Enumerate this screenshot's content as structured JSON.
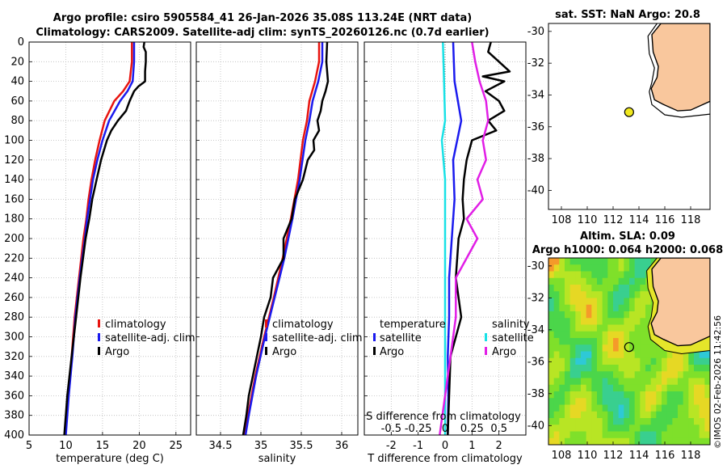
{
  "title": {
    "line1": "Argo profile: csiro 5905584_41 26-Jan-2026 35.08S 113.24E (NRT data)",
    "line2": "Climatology: CARS2009. Satellite-adj clim: synTS_20260126.nc (0.7d earlier)"
  },
  "colors": {
    "climatology": "#e8140f",
    "satellite": "#1a1aee",
    "argo": "#000000",
    "sal_sat": "#19e1e6",
    "sal_argo": "#e11ee6",
    "land": "#f9c79d",
    "argo_dot": "#f0e81e"
  },
  "chart_data": [
    {
      "type": "line",
      "id": "temperature",
      "xlabel": "temperature (deg C)",
      "xlim": [
        5,
        27
      ],
      "xticks": [
        "5",
        "10",
        "15",
        "20",
        "25"
      ],
      "ylim": [
        0,
        400
      ],
      "yticks": [
        "0",
        "20",
        "40",
        "60",
        "80",
        "100",
        "120",
        "140",
        "160",
        "180",
        "200",
        "220",
        "240",
        "260",
        "280",
        "300",
        "320",
        "340",
        "360",
        "380",
        "400"
      ],
      "legend": [
        "climatology",
        "satellite-adj. clim",
        "Argo"
      ],
      "series": [
        {
          "name": "climatology",
          "depth": [
            0,
            20,
            40,
            50,
            60,
            80,
            100,
            120,
            140,
            160,
            180,
            200,
            240,
            280,
            320,
            360,
            400
          ],
          "values": [
            19.0,
            19.0,
            18.7,
            17.8,
            16.6,
            15.3,
            14.6,
            14.0,
            13.5,
            13.1,
            12.8,
            12.4,
            11.8,
            11.2,
            10.8,
            10.3,
            9.9
          ]
        },
        {
          "name": "satellite-adj. clim",
          "depth": [
            0,
            20,
            40,
            50,
            60,
            80,
            100,
            120,
            140,
            160,
            180,
            200,
            240,
            280,
            320,
            360,
            400
          ],
          "values": [
            19.3,
            19.3,
            19.1,
            18.4,
            17.4,
            15.9,
            15.0,
            14.3,
            13.7,
            13.3,
            12.9,
            12.6,
            11.9,
            11.3,
            10.9,
            10.4,
            10.0
          ]
        },
        {
          "name": "Argo",
          "depth": [
            0,
            5,
            10,
            20,
            30,
            40,
            45,
            50,
            60,
            70,
            80,
            90,
            100,
            120,
            140,
            160,
            180,
            200,
            240,
            280,
            320,
            360,
            400
          ],
          "values": [
            20.7,
            20.6,
            20.9,
            20.9,
            20.8,
            20.8,
            19.9,
            19.3,
            18.7,
            18.2,
            17.1,
            16.2,
            15.6,
            14.8,
            14.2,
            13.6,
            13.2,
            12.7,
            12.0,
            11.4,
            10.8,
            10.2,
            9.8
          ]
        }
      ]
    },
    {
      "type": "line",
      "id": "salinity",
      "xlabel": "salinity",
      "xlim": [
        34.2,
        36.2
      ],
      "xticks": [
        "34.5",
        "35",
        "35.5",
        "36"
      ],
      "ylim": [
        0,
        400
      ],
      "legend": [
        "climatology",
        "satellite-adj. clim",
        "Argo"
      ],
      "series": [
        {
          "name": "climatology",
          "depth": [
            0,
            20,
            40,
            60,
            80,
            100,
            140,
            180,
            220,
            260,
            300,
            340,
            380,
            400
          ],
          "values": [
            35.72,
            35.72,
            35.67,
            35.6,
            35.57,
            35.52,
            35.46,
            35.37,
            35.27,
            35.16,
            35.04,
            34.93,
            34.84,
            34.8
          ]
        },
        {
          "name": "satellite-adj. clim",
          "depth": [
            0,
            20,
            40,
            60,
            80,
            100,
            140,
            180,
            220,
            260,
            300,
            340,
            380,
            400
          ],
          "values": [
            35.76,
            35.76,
            35.71,
            35.64,
            35.6,
            35.55,
            35.48,
            35.39,
            35.29,
            35.17,
            35.05,
            34.94,
            34.85,
            34.81
          ]
        },
        {
          "name": "Argo",
          "depth": [
            0,
            20,
            40,
            50,
            60,
            70,
            80,
            90,
            100,
            110,
            120,
            140,
            160,
            180,
            200,
            220,
            240,
            260,
            280,
            300,
            320,
            340,
            360,
            380,
            400
          ],
          "values": [
            35.82,
            35.81,
            35.83,
            35.8,
            35.76,
            35.74,
            35.7,
            35.72,
            35.65,
            35.66,
            35.58,
            35.52,
            35.42,
            35.38,
            35.28,
            35.28,
            35.15,
            35.12,
            35.04,
            35.0,
            34.95,
            34.9,
            34.85,
            34.82,
            34.78
          ]
        }
      ]
    },
    {
      "type": "line",
      "id": "difference",
      "xlabel": "T difference from climatology",
      "xlabel2": "S difference from climatology",
      "xlim": [
        -3,
        3
      ],
      "xticks": [
        "-2",
        "-1",
        "0",
        "1",
        "2"
      ],
      "xticks2": [
        "-0.5",
        "-0.25",
        "0",
        "0.25",
        "0.5"
      ],
      "ylim": [
        0,
        400
      ],
      "legend_t": {
        "title": "temperature",
        "items": [
          "satellite",
          "Argo"
        ]
      },
      "legend_s": {
        "title": "salinity",
        "items": [
          "satellite",
          "Argo"
        ]
      },
      "series": [
        {
          "name": "T satellite",
          "depth": [
            0,
            40,
            80,
            120,
            160,
            200,
            240,
            280,
            320,
            360,
            400
          ],
          "values": [
            0.3,
            0.35,
            0.6,
            0.3,
            0.35,
            0.25,
            0.15,
            0.15,
            0.1,
            0.12,
            0.1
          ]
        },
        {
          "name": "T Argo",
          "depth": [
            0,
            10,
            20,
            30,
            35,
            40,
            50,
            60,
            70,
            80,
            90,
            100,
            120,
            140,
            160,
            180,
            200,
            240,
            280,
            320,
            360,
            400
          ],
          "values": [
            1.7,
            1.6,
            2.0,
            2.4,
            1.4,
            2.2,
            1.5,
            2.0,
            2.2,
            1.6,
            1.9,
            1.0,
            0.8,
            0.7,
            0.65,
            0.7,
            0.5,
            0.4,
            0.6,
            0.2,
            0.15,
            0.1
          ]
        },
        {
          "name": "S satellite",
          "depth": [
            0,
            40,
            80,
            100,
            140,
            200,
            280,
            320,
            360,
            400
          ],
          "values": [
            -0.02,
            -0.01,
            0.0,
            -0.03,
            0.0,
            0.0,
            0.0,
            0.0,
            0.0,
            0.0
          ]
        },
        {
          "name": "S Argo",
          "depth": [
            0,
            20,
            40,
            60,
            80,
            100,
            120,
            140,
            160,
            180,
            200,
            240,
            280,
            320,
            360,
            400
          ],
          "values": [
            0.25,
            0.28,
            0.32,
            0.38,
            0.4,
            0.35,
            0.38,
            0.3,
            0.35,
            0.2,
            0.3,
            0.1,
            0.1,
            0.05,
            0.0,
            -0.05
          ]
        }
      ]
    },
    {
      "type": "heatmap",
      "id": "sst_map",
      "title": "sat. SST: NaN Argo: 20.8",
      "xticks": [
        "108",
        "110",
        "112",
        "114",
        "116",
        "118"
      ],
      "yticks": [
        "-30",
        "-32",
        "-34",
        "-36",
        "-38",
        "-40"
      ],
      "xlim": [
        107,
        119.5
      ],
      "ylim": [
        -41.2,
        -29.5
      ],
      "argo_lon": 113.24,
      "argo_lat": -35.08
    },
    {
      "type": "heatmap",
      "id": "sla_map",
      "title": "Altim. SLA: 0.09",
      "subtitle": "Argo h1000: 0.064 h2000: 0.068",
      "xticks": [
        "108",
        "110",
        "112",
        "114",
        "116",
        "118"
      ],
      "yticks": [
        "-30",
        "-32",
        "-34",
        "-36",
        "-38",
        "-40"
      ],
      "xlim": [
        107,
        119.5
      ],
      "ylim": [
        -41.2,
        -29.5
      ],
      "argo_lon": 113.24,
      "argo_lat": -35.08
    }
  ],
  "stamp": "©IMOS 02-Feb-2026 11:42:56"
}
